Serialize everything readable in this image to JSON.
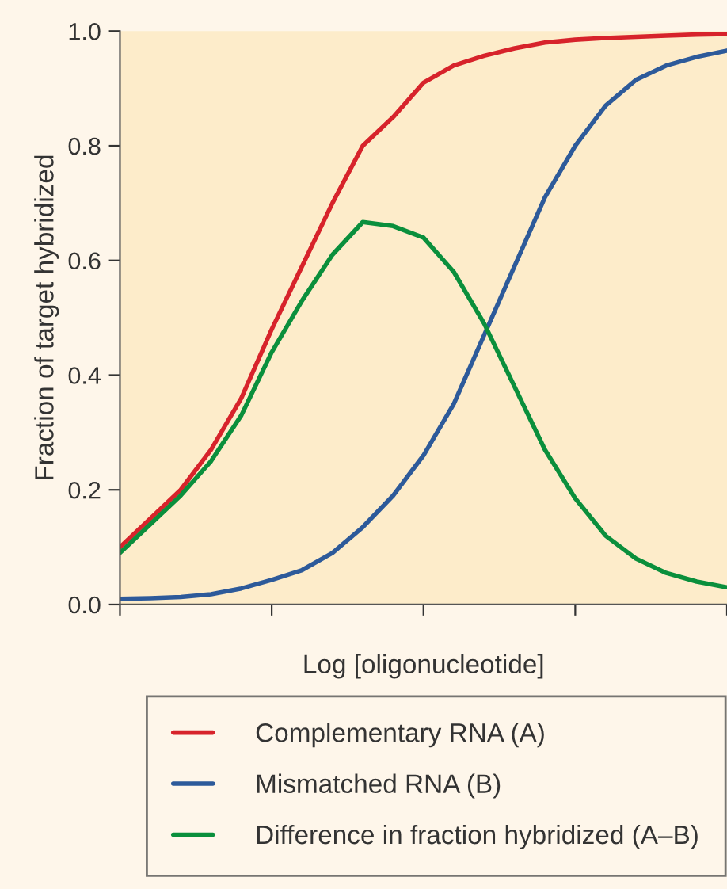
{
  "chart_data": {
    "type": "line",
    "xlabel": "Log [oligonucleotide]",
    "ylabel": "Fraction of target hybridized",
    "categories": [
      null,
      null,
      null,
      null,
      null,
      null,
      null,
      null,
      null,
      null,
      null,
      null,
      null,
      null,
      null,
      null,
      null,
      null,
      null,
      null,
      null
    ],
    "series": [
      {
        "name": "Complementary RNA (A)",
        "color": "#d7232b",
        "values": [
          0.1,
          0.15,
          0.2,
          0.27,
          0.36,
          0.48,
          0.59,
          0.7,
          0.8,
          0.85,
          0.91,
          0.94,
          0.957,
          0.97,
          0.98,
          0.985,
          0.988,
          0.99,
          0.992,
          0.994,
          0.995
        ]
      },
      {
        "name": "Mismatched RNA (B)",
        "color": "#2d5a9a",
        "values": [
          0.01,
          0.011,
          0.013,
          0.018,
          0.028,
          0.043,
          0.06,
          0.09,
          0.135,
          0.19,
          0.26,
          0.35,
          0.47,
          0.59,
          0.71,
          0.8,
          0.87,
          0.915,
          0.94,
          0.955,
          0.966
        ]
      },
      {
        "name": "Difference in fraction hybridized (A–B)",
        "color": "#0a8f3c",
        "values": [
          0.09,
          0.14,
          0.19,
          0.25,
          0.33,
          0.44,
          0.53,
          0.61,
          0.667,
          0.66,
          0.64,
          0.58,
          0.49,
          0.38,
          0.27,
          0.185,
          0.12,
          0.08,
          0.055,
          0.04,
          0.03
        ]
      }
    ],
    "ylim": [
      0,
      1
    ],
    "yticks": [
      {
        "value": 0,
        "label": "0.0"
      },
      {
        "value": 0.2,
        "label": "0.2"
      },
      {
        "value": 0.4,
        "label": "0.4"
      },
      {
        "value": 0.6,
        "label": "0.6"
      },
      {
        "value": 0.8,
        "label": "0.8"
      },
      {
        "value": 1,
        "label": "1.0"
      }
    ],
    "grid": false,
    "legend": "bottom",
    "line_style": "solid",
    "marker": "none"
  }
}
